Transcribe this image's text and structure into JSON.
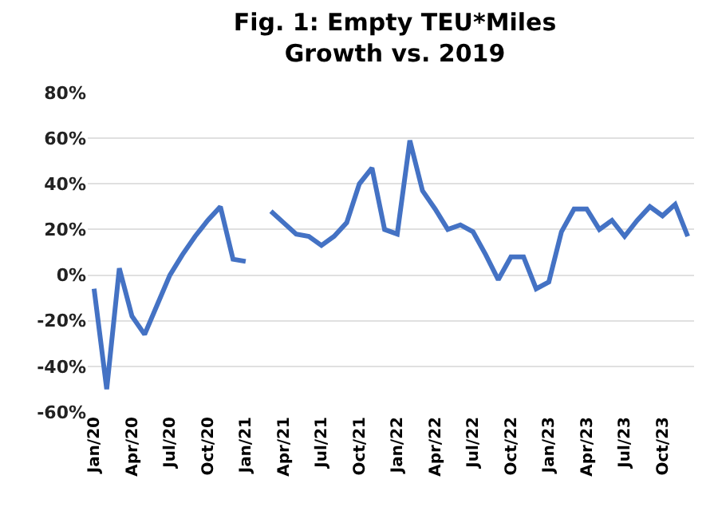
{
  "chart_data": {
    "type": "line",
    "title": "Fig. 1: Empty TEU*Miles\nGrowth vs. 2019",
    "categories": [
      "Jan/20",
      null,
      null,
      "Apr/20",
      null,
      null,
      "Jul/20",
      null,
      null,
      "Oct/20",
      null,
      null,
      "Jan/21",
      null,
      null,
      "Apr/21",
      null,
      null,
      "Jul/21",
      null,
      null,
      "Oct/21",
      null,
      null,
      "Jan/22",
      null,
      null,
      "Apr/22",
      null,
      null,
      "Jul/22",
      null,
      null,
      "Oct/22",
      null,
      null,
      "Jan/23",
      null,
      null,
      "Apr/23",
      null,
      null,
      "Jul/23",
      null,
      null,
      "Oct/23",
      null,
      null
    ],
    "series": [
      {
        "color": "#4472c4",
        "values": [
          -6,
          -50,
          3,
          -18,
          -26,
          -13,
          0,
          9,
          17,
          24,
          30,
          7,
          6,
          null,
          28,
          23,
          18,
          17,
          13,
          17,
          23,
          40,
          47,
          20,
          18,
          59,
          37,
          29,
          20,
          22,
          19,
          9,
          -2,
          8,
          8,
          -6,
          -3,
          19,
          29,
          29,
          20,
          24,
          17,
          24,
          30,
          26,
          31,
          17
        ]
      }
    ],
    "ylim": [
      -60,
      80
    ],
    "yticks": [
      {
        "value": -60,
        "label": "-60%"
      },
      {
        "value": -40,
        "label": "-40%"
      },
      {
        "value": -20,
        "label": "-20%"
      },
      {
        "value": 0,
        "label": "0%"
      },
      {
        "value": 20,
        "label": "20%"
      },
      {
        "value": 40,
        "label": "40%"
      },
      {
        "value": 60,
        "label": "60%"
      },
      {
        "value": 80,
        "label": "80%"
      }
    ],
    "grid": "y",
    "marker": "none",
    "line_style": "solid"
  }
}
